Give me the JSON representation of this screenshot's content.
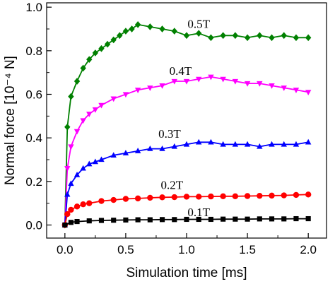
{
  "chart_data": {
    "type": "line",
    "title": "",
    "xlabel": "Simulation time [ms]",
    "ylabel": "Normal force [10⁻⁴ N]",
    "xlim": [
      -0.15,
      2.15
    ],
    "ylim": [
      -0.06,
      1.02
    ],
    "xticks": [
      0.0,
      0.5,
      1.0,
      1.5,
      2.0
    ],
    "xtick_labels": [
      "0.0",
      "0.5",
      "1.0",
      "1.5",
      "2.0"
    ],
    "yticks": [
      0.0,
      0.2,
      0.4,
      0.6,
      0.8,
      1.0
    ],
    "ytick_labels": [
      "0.0",
      "0.2",
      "0.4",
      "0.6",
      "0.8",
      "1.0"
    ],
    "grid": false,
    "legend": "none",
    "series": [
      {
        "name": "0.5T",
        "color": "#008000",
        "marker": "diamond",
        "x": [
          0,
          0.02,
          0.05,
          0.1,
          0.15,
          0.2,
          0.25,
          0.3,
          0.35,
          0.4,
          0.45,
          0.5,
          0.55,
          0.6,
          0.7,
          0.8,
          0.9,
          1.0,
          1.1,
          1.2,
          1.3,
          1.4,
          1.5,
          1.6,
          1.7,
          1.8,
          1.9,
          2.0
        ],
        "y": [
          0,
          0.45,
          0.59,
          0.66,
          0.72,
          0.76,
          0.79,
          0.81,
          0.83,
          0.85,
          0.87,
          0.89,
          0.9,
          0.92,
          0.91,
          0.9,
          0.89,
          0.87,
          0.88,
          0.86,
          0.87,
          0.87,
          0.86,
          0.87,
          0.86,
          0.87,
          0.86,
          0.86
        ]
      },
      {
        "name": "0.4T",
        "color": "#ff00ff",
        "marker": "triangle-down",
        "x": [
          0,
          0.02,
          0.05,
          0.1,
          0.15,
          0.2,
          0.25,
          0.3,
          0.4,
          0.5,
          0.6,
          0.7,
          0.8,
          0.9,
          1.0,
          1.1,
          1.2,
          1.3,
          1.4,
          1.5,
          1.6,
          1.7,
          1.8,
          1.9,
          2.0
        ],
        "y": [
          0,
          0.26,
          0.36,
          0.43,
          0.48,
          0.51,
          0.53,
          0.55,
          0.58,
          0.6,
          0.62,
          0.63,
          0.64,
          0.66,
          0.66,
          0.67,
          0.68,
          0.67,
          0.66,
          0.65,
          0.65,
          0.64,
          0.63,
          0.62,
          0.61
        ]
      },
      {
        "name": "0.3T",
        "color": "#0000ff",
        "marker": "triangle-up",
        "x": [
          0,
          0.02,
          0.05,
          0.1,
          0.15,
          0.2,
          0.25,
          0.3,
          0.4,
          0.5,
          0.6,
          0.7,
          0.8,
          0.9,
          1.0,
          1.1,
          1.2,
          1.3,
          1.4,
          1.5,
          1.6,
          1.7,
          1.8,
          1.9,
          2.0
        ],
        "y": [
          0,
          0.14,
          0.19,
          0.23,
          0.26,
          0.28,
          0.29,
          0.3,
          0.32,
          0.33,
          0.34,
          0.35,
          0.35,
          0.36,
          0.37,
          0.38,
          0.38,
          0.37,
          0.37,
          0.37,
          0.36,
          0.37,
          0.37,
          0.37,
          0.38
        ]
      },
      {
        "name": "0.2T",
        "color": "#ff0000",
        "marker": "circle",
        "x": [
          0,
          0.02,
          0.05,
          0.1,
          0.15,
          0.2,
          0.3,
          0.4,
          0.5,
          0.6,
          0.7,
          0.8,
          0.9,
          1.0,
          1.1,
          1.2,
          1.3,
          1.4,
          1.5,
          1.6,
          1.7,
          1.8,
          1.9,
          2.0
        ],
        "y": [
          0,
          0.05,
          0.07,
          0.085,
          0.095,
          0.1,
          0.11,
          0.115,
          0.12,
          0.122,
          0.125,
          0.127,
          0.128,
          0.13,
          0.13,
          0.131,
          0.132,
          0.132,
          0.133,
          0.134,
          0.135,
          0.136,
          0.138,
          0.14
        ]
      },
      {
        "name": "0.1T",
        "color": "#000000",
        "marker": "square",
        "x": [
          0,
          0.05,
          0.1,
          0.2,
          0.3,
          0.4,
          0.5,
          0.6,
          0.7,
          0.8,
          0.9,
          1.0,
          1.1,
          1.2,
          1.3,
          1.4,
          1.5,
          1.6,
          1.7,
          1.8,
          1.9,
          2.0
        ],
        "y": [
          0,
          0.012,
          0.016,
          0.019,
          0.021,
          0.022,
          0.023,
          0.024,
          0.024,
          0.025,
          0.025,
          0.026,
          0.026,
          0.026,
          0.027,
          0.027,
          0.027,
          0.028,
          0.028,
          0.028,
          0.029,
          0.029
        ]
      }
    ]
  }
}
